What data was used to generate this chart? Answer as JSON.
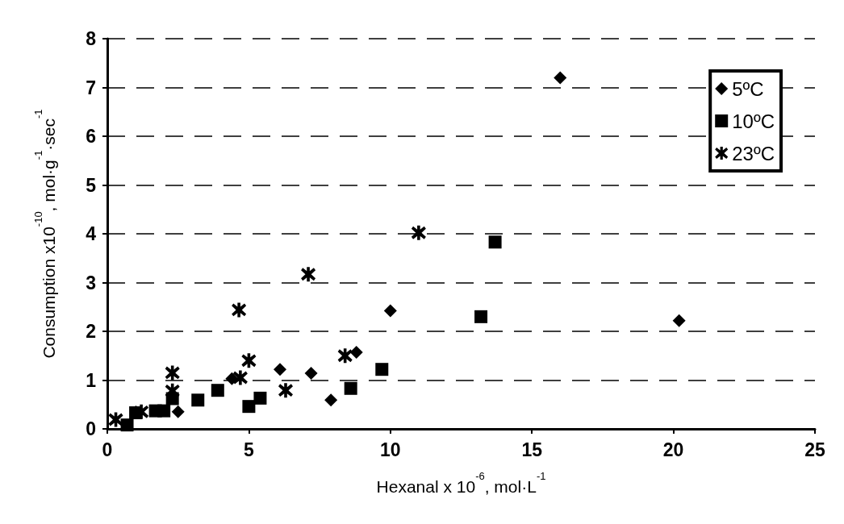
{
  "chart_data": {
    "type": "scatter",
    "xlabel": "Hexanal x 10$^{-6}$, mol·L$^{-1}$",
    "ylabel": "Consumption x10$^{-10}$, mol·g$^{-1}$·sec$^{-1}$",
    "xlim": [
      0,
      25
    ],
    "xticks": [
      0,
      5,
      10,
      15,
      20,
      25
    ],
    "ylim": [
      0,
      8
    ],
    "yticks": [
      0,
      1,
      2,
      3,
      4,
      5,
      6,
      7,
      8
    ],
    "grid": "y",
    "legend": "top right",
    "series": [
      {
        "name": "5ºC",
        "color": "#000000",
        "marker": "diamond",
        "x": [
          2.5,
          4.4,
          6.1,
          7.2,
          7.9,
          8.8,
          10.0,
          16.0,
          20.2
        ],
        "values": [
          0.35,
          1.03,
          1.22,
          1.14,
          0.59,
          1.57,
          2.42,
          7.2,
          2.22
        ]
      },
      {
        "name": "10ºC",
        "color": "#000000",
        "marker": "square",
        "x": [
          0.7,
          1.0,
          1.7,
          2.0,
          2.3,
          3.2,
          3.9,
          5.0,
          5.4,
          8.6,
          9.7,
          13.2,
          13.7
        ],
        "values": [
          0.08,
          0.33,
          0.37,
          0.37,
          0.62,
          0.59,
          0.79,
          0.46,
          0.63,
          0.83,
          1.22,
          2.3,
          3.83
        ]
      },
      {
        "name": "23ºC",
        "color": "#000000",
        "marker": "star",
        "x": [
          0.3,
          1.2,
          2.3,
          2.3,
          4.65,
          4.7,
          5.0,
          6.3,
          7.1,
          8.4,
          11.0
        ],
        "values": [
          0.19,
          0.35,
          0.78,
          1.15,
          2.44,
          1.05,
          1.4,
          0.79,
          3.17,
          1.5,
          4.02
        ]
      }
    ]
  }
}
